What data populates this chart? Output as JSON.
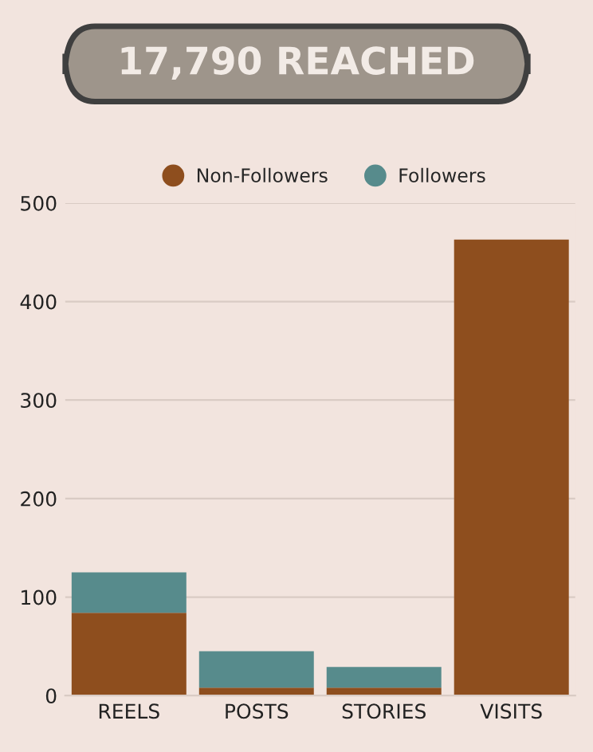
{
  "chart_data": {
    "type": "bar",
    "title": "17,790 REACHED",
    "categories": [
      "REELS",
      "POSTS",
      "STORIES",
      "VISITS"
    ],
    "stacked": true,
    "series": [
      {
        "name": "Non-Followers",
        "color": "#8e4e1e",
        "values": [
          84,
          8,
          8,
          463
        ]
      },
      {
        "name": "Followers",
        "color": "#578b8c",
        "values": [
          41,
          37,
          21,
          null
        ]
      }
    ],
    "ylim": [
      0,
      500
    ],
    "yticks": [
      0,
      100,
      200,
      300,
      400,
      500
    ],
    "grid": "y",
    "legend": "top"
  }
}
